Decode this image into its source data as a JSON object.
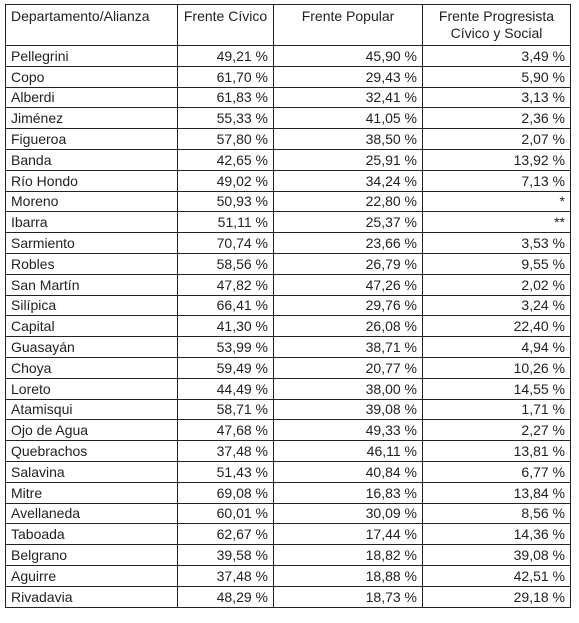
{
  "table": {
    "headers": [
      "Departamento/Alianza",
      "Frente Cívico",
      "Frente Popular",
      "Frente Progresista Cívico y Social"
    ],
    "rows": [
      [
        "Pellegrini",
        "49,21 %",
        "45,90 %",
        "3,49 %"
      ],
      [
        "Copo",
        "61,70 %",
        "29,43 %",
        "5,90 %"
      ],
      [
        "Alberdi",
        "61,83 %",
        "32,41 %",
        "3,13 %"
      ],
      [
        "Jiménez",
        "55,33 %",
        "41,05 %",
        "2,36 %"
      ],
      [
        "Figueroa",
        "57,80 %",
        "38,50 %",
        "2,07 %"
      ],
      [
        "Banda",
        "42,65 %",
        "25,91 %",
        "13,92 %"
      ],
      [
        "Río Hondo",
        "49,02 %",
        "34,24 %",
        "7,13 %"
      ],
      [
        "Moreno",
        "50,93 %",
        "22,80 %",
        "*"
      ],
      [
        "Ibarra",
        "51,11 %",
        "25,37 %",
        "**"
      ],
      [
        "Sarmiento",
        "70,74 %",
        "23,66 %",
        "3,53 %"
      ],
      [
        "Robles",
        "58,56 %",
        "26,79 %",
        "9,55 %"
      ],
      [
        "San Martín",
        "47,82 %",
        "47,26 %",
        "2,02 %"
      ],
      [
        "Silípica",
        "66,41 %",
        "29,76 %",
        "3,24 %"
      ],
      [
        "Capital",
        "41,30 %",
        "26,08 %",
        "22,40 %"
      ],
      [
        "Guasayán",
        "53,99 %",
        "38,71 %",
        "4,94 %"
      ],
      [
        "Choya",
        "59,49 %",
        "20,77 %",
        "10,26 %"
      ],
      [
        "Loreto",
        "44,49 %",
        "38,00 %",
        "14,55 %"
      ],
      [
        "Atamisqui",
        "58,71 %",
        "39,08 %",
        "1,71 %"
      ],
      [
        "Ojo de Agua",
        "47,68 %",
        "49,33 %",
        "2,27 %"
      ],
      [
        "Quebrachos",
        "37,48 %",
        "46,11 %",
        "13,81 %"
      ],
      [
        "Salavina",
        "51,43 %",
        "40,84 %",
        "6,77 %"
      ],
      [
        "Mitre",
        "69,08 %",
        "16,83 %",
        "13,84 %"
      ],
      [
        "Avellaneda",
        "60,01 %",
        "30,09 %",
        "8,56 %"
      ],
      [
        "Taboada",
        "62,67 %",
        "17,44 %",
        "14,36 %"
      ],
      [
        "Belgrano",
        "39,58 %",
        "18,82 %",
        "39,08 %"
      ],
      [
        "Aguirre",
        "37,48 %",
        "18,88 %",
        "42,51 %"
      ],
      [
        "Rivadavia",
        "48,29 %",
        "18,73 %",
        "29,18 %"
      ]
    ]
  }
}
